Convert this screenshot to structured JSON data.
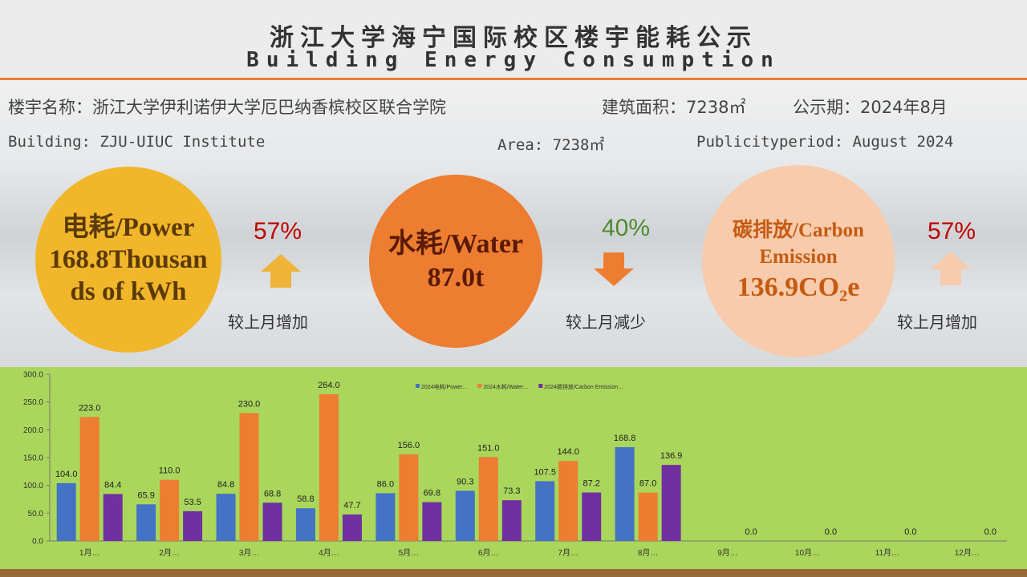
{
  "header": {
    "title_cn": "浙江大学海宁国际校区楼宇能耗公示",
    "title_en": "Building Energy Consumption"
  },
  "info": {
    "cn_building": "楼宇名称：浙江大学伊利诺伊大学厄巴纳香槟校区联合学院",
    "cn_area": "建筑面积：7238㎡",
    "cn_period": "公示期：2024年8月",
    "en_building": "Building: ZJU-UIUC Institute",
    "en_area": "Area: 7238㎡",
    "en_period": "Publicityperiod: August 2024"
  },
  "metrics": [
    {
      "label": "电耗/Power",
      "value": "168.8Thousands of kWh",
      "change": "57%",
      "note": "较上月增加"
    },
    {
      "label": "水耗/Water",
      "value": "87.0t",
      "change": "40%",
      "note": "较上月减少"
    },
    {
      "label": "碳排放/Carbon Emission",
      "value": "136.9CO₂e",
      "change": "57%",
      "note": "较上月增加"
    }
  ],
  "chart_data": {
    "type": "bar",
    "categories": [
      "1月…",
      "2月…",
      "3月…",
      "4月…",
      "5月…",
      "6月…",
      "7月…",
      "8月…",
      "9月…",
      "10月…",
      "11月…",
      "12月…"
    ],
    "series": [
      {
        "name": "2024电耗/Power…",
        "color": "#4472c4",
        "values": [
          104.0,
          65.9,
          84.8,
          58.8,
          86.0,
          90.3,
          107.5,
          168.8,
          null,
          null,
          null,
          null
        ],
        "value_labels": [
          "104.0",
          "65.9",
          "84.8",
          "58.8",
          "86.0",
          "90.3",
          "107.5",
          "168.8",
          null,
          null,
          null,
          null
        ]
      },
      {
        "name": "2024水耗/Water…",
        "color": "#ed7d31",
        "values": [
          223.0,
          110.0,
          230.0,
          264.0,
          156.0,
          151.0,
          144.0,
          87.0,
          null,
          null,
          null,
          null
        ],
        "value_labels": [
          "223.0",
          "110.0",
          "230.0",
          "264.0",
          "156.0",
          "151.0",
          "144.0",
          "87.0",
          null,
          null,
          null,
          null
        ]
      },
      {
        "name": "2024碳排放/Carbon Emission…",
        "color": "#7030a0",
        "values": [
          84.4,
          53.5,
          68.8,
          47.7,
          69.8,
          73.3,
          87.2,
          136.9,
          0,
          0,
          0,
          0
        ],
        "value_labels": [
          "84.4",
          "53.5",
          "68.8",
          "47.7",
          "69.8",
          "73.3",
          "87.2",
          "136.9",
          "0.0",
          "0.0",
          "0.0",
          "0.0"
        ]
      }
    ],
    "ylim": [
      0,
      300
    ],
    "yticks": [
      {
        "value": 0,
        "label": "0.0"
      },
      {
        "value": 50,
        "label": "50.0"
      },
      {
        "value": 100,
        "label": "100.0"
      },
      {
        "value": 150,
        "label": "150.0"
      },
      {
        "value": 200,
        "label": "200.0"
      },
      {
        "value": 250,
        "label": "250.0"
      },
      {
        "value": 300,
        "label": "300.0"
      }
    ]
  }
}
